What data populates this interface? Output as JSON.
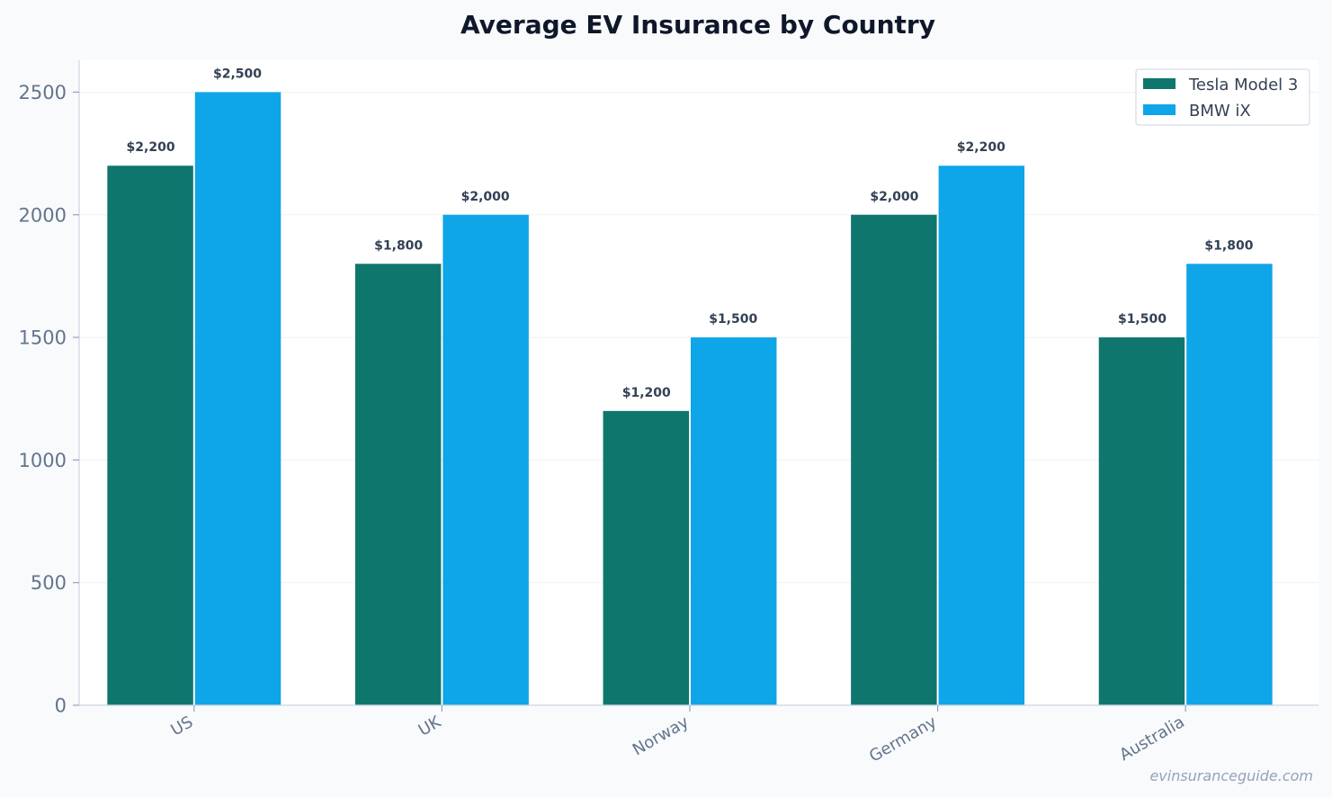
{
  "chart_data": {
    "type": "bar",
    "title": "Average EV Insurance by Country",
    "xlabel": "",
    "ylabel": "",
    "categories": [
      "US",
      "UK",
      "Norway",
      "Germany",
      "Australia"
    ],
    "series": [
      {
        "name": "Tesla Model 3",
        "color": "#0f766e",
        "values": [
          2200,
          1800,
          1200,
          2000,
          1500
        ],
        "labels": [
          "$2,200",
          "$1,800",
          "$1,200",
          "$2,000",
          "$1,500"
        ]
      },
      {
        "name": "BMW iX",
        "color": "#0ea5e9",
        "values": [
          2500,
          2000,
          1500,
          2200,
          1800
        ],
        "labels": [
          "$2,500",
          "$2,000",
          "$1,500",
          "$2,200",
          "$1,800"
        ]
      }
    ],
    "ylim": [
      0,
      2630
    ],
    "yticks": [
      0,
      500,
      1000,
      1500,
      2000,
      2500
    ],
    "grid": true,
    "legend_position": "top-right"
  },
  "watermark": "evinsuranceguide.com"
}
